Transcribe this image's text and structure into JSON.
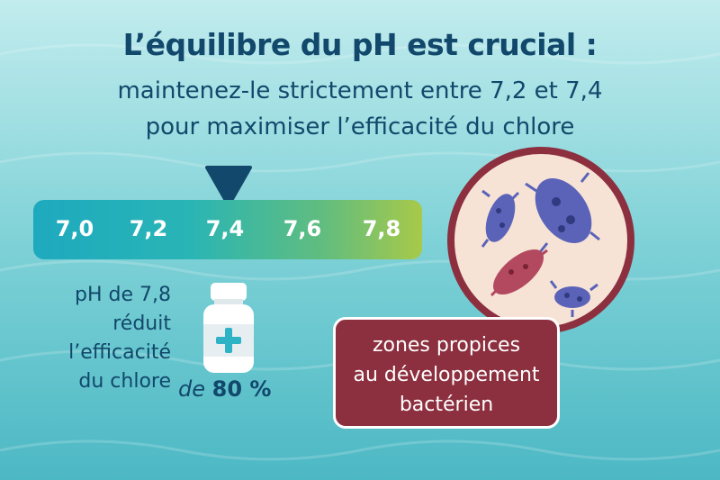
{
  "title": {
    "line1": "L’équilibre du pH est crucial :",
    "line2": "maintenez-le strictement entre 7,2 et 7,4",
    "line3": "pour maximiser l’efficacité du chlore"
  },
  "scale": {
    "ticks": [
      "7,0",
      "7,2",
      "7,4",
      "7,6",
      "7,8"
    ],
    "marker_value": "7,4"
  },
  "note": {
    "lines": [
      "pH de 7,8",
      "réduit",
      "l’efficacité",
      "du chlore"
    ],
    "de": "de",
    "percent": "80 %"
  },
  "bacteria_label": {
    "lines": [
      "zones propices",
      "au développement",
      "bactérien"
    ]
  },
  "icons": {
    "marker": "triangle-down-icon",
    "bottle": "medicine-bottle-icon",
    "petri": "petri-dish-icon"
  },
  "colors": {
    "title": "#11486b",
    "label_bg": "#8c2f3f",
    "bar_start": "#1ea9bf",
    "bar_end": "#a8c949"
  }
}
